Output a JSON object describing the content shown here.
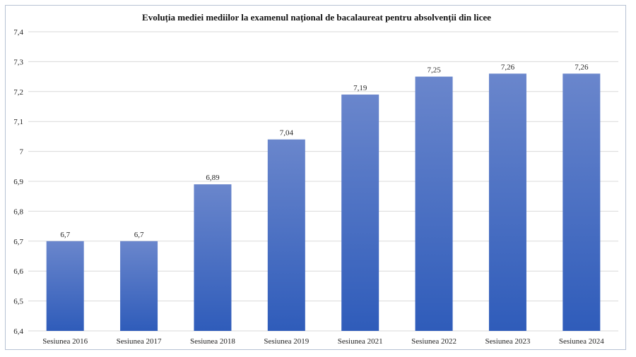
{
  "chart_data": {
    "type": "bar",
    "title": "Evoluția mediei mediilor la examenul național de bacalaureat pentru absolvenții din licee",
    "xlabel": "",
    "ylabel": "",
    "categories": [
      "Sesiunea 2016",
      "Sesiunea 2017",
      "Sesiunea 2018",
      "Sesiunea 2019",
      "Sesiunea 2021",
      "Sesiunea 2022",
      "Sesiunea 2023",
      "Sesiunea 2024"
    ],
    "values": [
      6.7,
      6.7,
      6.89,
      7.04,
      7.19,
      7.25,
      7.26,
      7.26
    ],
    "value_labels": [
      "6,7",
      "6,7",
      "6,89",
      "7,04",
      "7,19",
      "7,25",
      "7,26",
      "7,26"
    ],
    "ylim": [
      6.4,
      7.4
    ],
    "yticks": [
      6.4,
      6.5,
      6.6,
      6.7,
      6.8,
      6.9,
      7.0,
      7.1,
      7.2,
      7.3,
      7.4
    ],
    "ytick_labels": [
      "6,4",
      "6,5",
      "6,6",
      "6,7",
      "6,8",
      "6,9",
      "7",
      "7,1",
      "7,2",
      "7,3",
      "7,4"
    ],
    "grid": true,
    "legend": "none",
    "colors": {
      "bar_top": "#6a86cc",
      "bar_bottom": "#2f5cba",
      "grid": "#d9d9d9",
      "border": "#b7c2d4"
    }
  }
}
